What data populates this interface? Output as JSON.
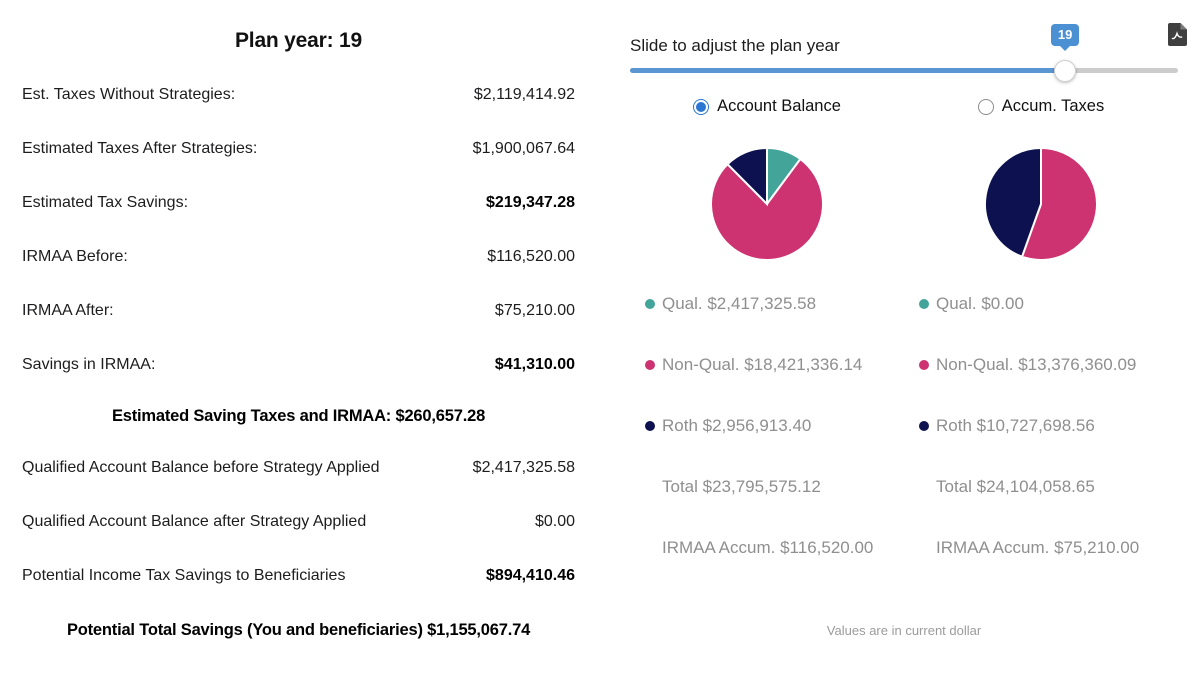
{
  "summary": {
    "title": "Plan year: 19",
    "rows": [
      {
        "label": "Est. Taxes Without Strategies:",
        "value": "$2,119,414.92"
      },
      {
        "label": "Estimated Taxes After Strategies:",
        "value": "$1,900,067.64"
      },
      {
        "label": "Estimated Tax Savings:",
        "value": "$219,347.28"
      },
      {
        "label": "IRMAA Before:",
        "value": "$116,520.00"
      },
      {
        "label": "IRMAA After:",
        "value": "$75,210.00"
      },
      {
        "label": "Savings in IRMAA:",
        "value": "$41,310.00"
      }
    ],
    "subtotal_line": "Estimated Saving Taxes and IRMAA: $260,657.28",
    "rows2": [
      {
        "label": "Qualified Account Balance before Strategy Applied",
        "value": "$2,417,325.58"
      },
      {
        "label": "Qualified Account Balance after Strategy Applied",
        "value": "$0.00"
      },
      {
        "label": "Potential Income Tax Savings to Beneficiaries",
        "value": "$894,410.46"
      }
    ],
    "total_line": "Potential Total Savings (You and beneficiaries) $1,155,067.74"
  },
  "slider": {
    "label": "Slide to adjust the plan year",
    "value": "19"
  },
  "radios": [
    {
      "label": "Account Balance",
      "selected": true
    },
    {
      "label": "Accum. Taxes",
      "selected": false
    }
  ],
  "chart_data": [
    {
      "type": "pie",
      "legend_position": "below",
      "slices": [
        {
          "name": "Qual.",
          "value": 2417325.58,
          "color": "#43a49a"
        },
        {
          "name": "Non-Qual.",
          "value": 18421336.14,
          "color": "#cc3370"
        },
        {
          "name": "Roth",
          "value": 2956913.4,
          "color": "#0d1150"
        }
      ],
      "legend": [
        "Qual. $2,417,325.58",
        "Non-Qual. $18,421,336.14",
        "Roth $2,956,913.40"
      ],
      "total_label": "Total $23,795,575.12",
      "irmaa_label": "IRMAA Accum. $116,520.00"
    },
    {
      "type": "pie",
      "legend_position": "below",
      "slices": [
        {
          "name": "Qual.",
          "value": 0.0,
          "color": "#43a49a"
        },
        {
          "name": "Non-Qual.",
          "value": 13376360.09,
          "color": "#cc3370"
        },
        {
          "name": "Roth",
          "value": 10727698.56,
          "color": "#0d1150"
        }
      ],
      "legend": [
        "Qual. $0.00",
        "Non-Qual. $13,376,360.09",
        "Roth $10,727,698.56"
      ],
      "total_label": "Total $24,104,058.65",
      "irmaa_label": "IRMAA Accum. $75,210.00"
    }
  ],
  "footnote": "Values are in current dollar",
  "colors": {
    "slider_blue": "#5a96d2",
    "badge_blue": "#4a90d2",
    "radio_blue": "#2a76d2",
    "teal": "#43a49a",
    "pink": "#cc3370",
    "navy": "#0d1150",
    "legend_gray": "#8f8f8f"
  },
  "icons": {
    "export": "pdf-file"
  }
}
